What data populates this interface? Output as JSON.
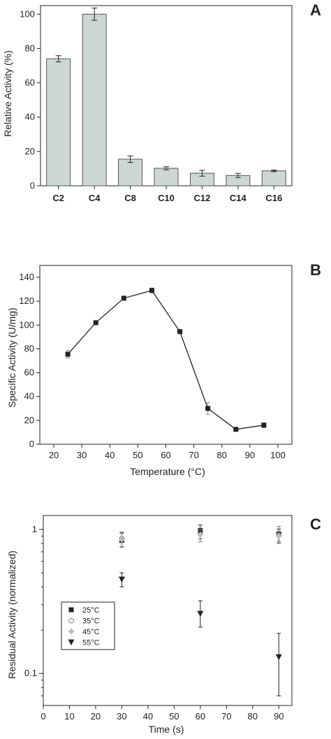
{
  "chart_data": [
    {
      "type": "bar",
      "panel_label": "A",
      "categories": [
        "C2",
        "C4",
        "C8",
        "C10",
        "C12",
        "C14",
        "C16"
      ],
      "values": [
        74,
        100,
        15.5,
        10.2,
        7.3,
        6.0,
        8.7
      ],
      "errors": [
        1.8,
        3.6,
        1.9,
        0.9,
        1.7,
        1.2,
        0.5
      ],
      "xlabel": "",
      "ylabel": "Relative Activity (%)",
      "ylim": [
        0,
        105
      ],
      "yticks": [
        0,
        20,
        40,
        60,
        80,
        100
      ],
      "bar_color": "#cdd8d5",
      "grid": false
    },
    {
      "type": "line",
      "panel_label": "B",
      "x": [
        25,
        35,
        45,
        55,
        65,
        75,
        85,
        95
      ],
      "values": [
        75.5,
        102,
        122.5,
        129,
        94.5,
        30,
        12.5,
        16
      ],
      "errors": [
        3,
        1.5,
        1.2,
        2,
        1.5,
        5,
        1,
        2
      ],
      "xlabel": "Temperature (°C)",
      "ylabel": "Specific Activity (U/mg)",
      "xlim": [
        15,
        105
      ],
      "ylim": [
        0,
        150
      ],
      "xticks": [
        20,
        30,
        40,
        50,
        60,
        70,
        80,
        90,
        100
      ],
      "yticks": [
        0,
        20,
        40,
        60,
        80,
        100,
        120,
        140
      ],
      "grid": false
    },
    {
      "type": "scatter",
      "panel_label": "C",
      "xlabel": "Time (s)",
      "ylabel": "Residual Activity (normalized)",
      "xlim": [
        0,
        95
      ],
      "ylim": [
        0.06,
        1.25
      ],
      "yscale": "log",
      "xticks": [
        0,
        10,
        20,
        30,
        40,
        50,
        60,
        70,
        80,
        90
      ],
      "yticks": [
        {
          "value": 0.1,
          "label": "0.1"
        },
        {
          "value": 1,
          "label": "1"
        }
      ],
      "legend_position": "center-left",
      "series": [
        {
          "name": "25°C",
          "marker": "square-filled",
          "color": "#222222",
          "x": [
            30,
            60,
            90
          ],
          "values": [
            0.84,
            0.98,
            0.93
          ],
          "errors_low": [
            0.08,
            0.12,
            0.1
          ],
          "errors_high": [
            0.1,
            0.1,
            0.12
          ]
        },
        {
          "name": "35°C",
          "marker": "circle-open",
          "color": "#8a8a8a",
          "x": [
            30,
            60,
            90
          ],
          "values": [
            0.86,
            0.96,
            0.91
          ],
          "errors_low": [
            0.1,
            0.1,
            0.1
          ],
          "errors_high": [
            0.1,
            0.1,
            0.1
          ]
        },
        {
          "name": "45°C",
          "marker": "diamond-filled",
          "color": "#bdbdbd",
          "x": [
            30,
            60,
            90
          ],
          "values": [
            0.85,
            0.92,
            0.9
          ],
          "errors_low": [
            0.1,
            0.1,
            0.1
          ],
          "errors_high": [
            0.1,
            0.1,
            0.1
          ]
        },
        {
          "name": "55°C",
          "marker": "triangle-down-filled",
          "color": "#222222",
          "x": [
            30,
            60,
            90
          ],
          "values": [
            0.45,
            0.26,
            0.13
          ],
          "errors_low": [
            0.05,
            0.05,
            0.06
          ],
          "errors_high": [
            0.05,
            0.06,
            0.06
          ]
        }
      ]
    }
  ]
}
